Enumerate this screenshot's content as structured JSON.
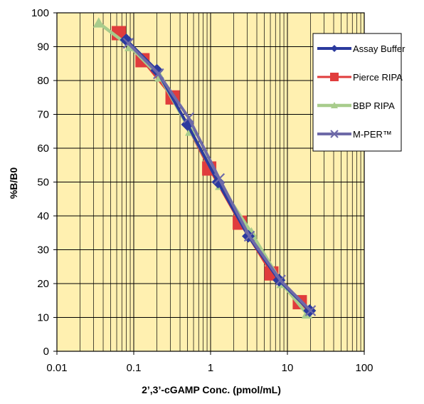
{
  "chart_data": {
    "type": "line",
    "xlabel": "2’,3’-cGAMP Conc. (pmol/mL)",
    "ylabel": "%B/B0",
    "x_scale": "log",
    "xlim": [
      0.01,
      100
    ],
    "ylim": [
      0,
      100
    ],
    "x_ticks": [
      "0.01",
      "0.1",
      "1",
      "10",
      "100"
    ],
    "y_ticks": [
      "0",
      "10",
      "20",
      "30",
      "40",
      "50",
      "60",
      "70",
      "80",
      "90",
      "100"
    ],
    "grid": true,
    "plot_background": "#FFF0B0",
    "grid_color": "#000000",
    "legend_position": "top-right",
    "series": [
      {
        "name": "Assay Buffer",
        "color": "#2B3A9E",
        "marker": "diamond",
        "x": [
          0.08,
          0.2,
          0.5,
          1.25,
          3.1,
          7.8,
          19.5
        ],
        "y": [
          92,
          83,
          67,
          50,
          34,
          21,
          12
        ]
      },
      {
        "name": "Pierce RIPA",
        "color": "#E03C3C",
        "marker": "square",
        "x": [
          0.064,
          0.13,
          0.32,
          0.96,
          2.4,
          6.2,
          14.5
        ],
        "y": [
          94,
          86,
          75,
          54,
          38,
          23,
          14.5
        ]
      },
      {
        "name": "BBP RIPA",
        "color": "#A8CC8C",
        "marker": "triangle",
        "x": [
          0.035,
          0.09,
          0.22,
          0.55,
          1.35,
          3.4,
          8.5,
          18
        ],
        "y": [
          97,
          90,
          81,
          65,
          49,
          35,
          20,
          11
        ]
      },
      {
        "name": "M-PER™",
        "color": "#6E6AA8",
        "marker": "x",
        "x": [
          0.085,
          0.21,
          0.52,
          1.3,
          3.2,
          8.1,
          20
        ],
        "y": [
          91,
          82,
          69,
          51,
          34,
          21,
          12
        ]
      }
    ]
  }
}
